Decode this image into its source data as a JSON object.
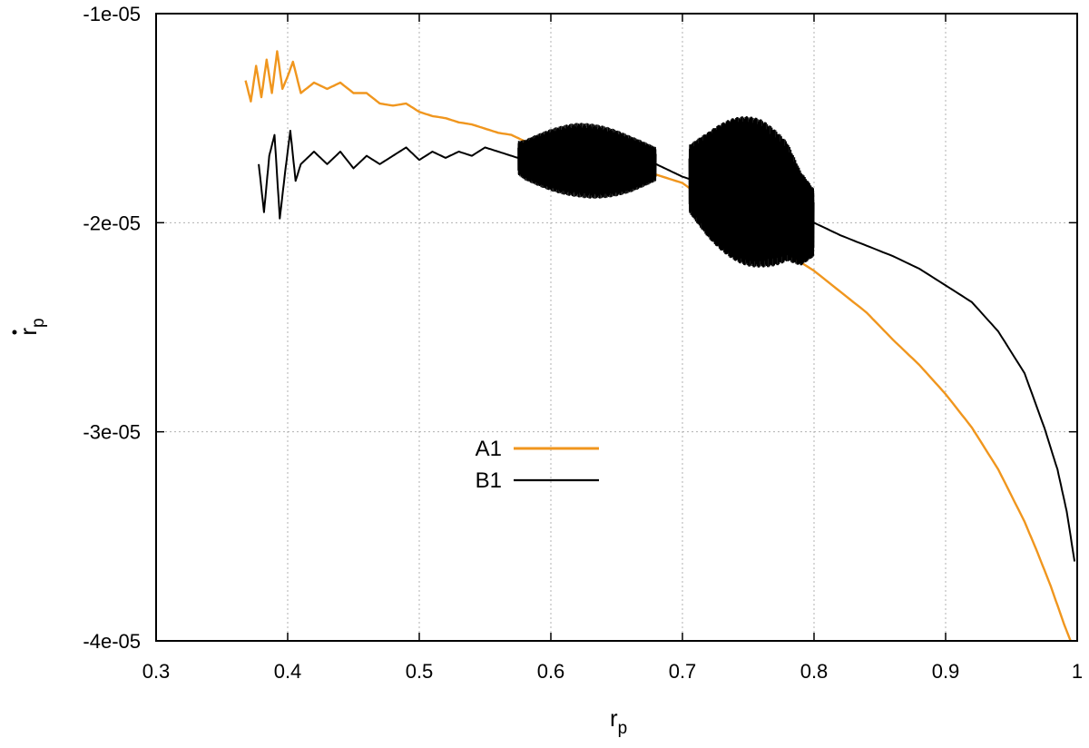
{
  "chart_data": {
    "type": "line",
    "title": "",
    "xlabel": "r",
    "xlabel_sub": "p",
    "ylabel": "r",
    "ylabel_sub": "p",
    "ylabel_dot": true,
    "xlim": [
      0.3,
      1.0
    ],
    "ylim": [
      -4e-05,
      -1e-05
    ],
    "x_ticks": [
      0.3,
      0.4,
      0.5,
      0.6,
      0.7,
      0.8,
      0.9,
      1.0
    ],
    "x_tick_labels": [
      "0.3",
      "0.4",
      "0.5",
      "0.6",
      "0.7",
      "0.8",
      "0.9",
      "1"
    ],
    "y_ticks": [
      -1e-05,
      -2e-05,
      -3e-05,
      -4e-05
    ],
    "y_tick_labels": [
      "-1e-05",
      "-2e-05",
      "-3e-05",
      "-4e-05"
    ],
    "grid": true,
    "legend_position": "center-left",
    "series": [
      {
        "name": "A1",
        "color": "#f0961e",
        "x": [
          0.368,
          0.372,
          0.376,
          0.38,
          0.384,
          0.388,
          0.392,
          0.396,
          0.4,
          0.404,
          0.41,
          0.42,
          0.43,
          0.44,
          0.45,
          0.46,
          0.47,
          0.48,
          0.49,
          0.5,
          0.51,
          0.52,
          0.53,
          0.54,
          0.55,
          0.56,
          0.57,
          0.58,
          0.59,
          0.6,
          0.62,
          0.64,
          0.66,
          0.68,
          0.7,
          0.72,
          0.74,
          0.76,
          0.78,
          0.8,
          0.82,
          0.84,
          0.86,
          0.88,
          0.9,
          0.92,
          0.94,
          0.96,
          0.97,
          0.98,
          0.99,
          0.995
        ],
        "y": [
          -1.32e-05,
          -1.42e-05,
          -1.25e-05,
          -1.4e-05,
          -1.22e-05,
          -1.38e-05,
          -1.18e-05,
          -1.36e-05,
          -1.3e-05,
          -1.23e-05,
          -1.38e-05,
          -1.33e-05,
          -1.36e-05,
          -1.33e-05,
          -1.38e-05,
          -1.38e-05,
          -1.43e-05,
          -1.44e-05,
          -1.43e-05,
          -1.47e-05,
          -1.49e-05,
          -1.5e-05,
          -1.52e-05,
          -1.53e-05,
          -1.55e-05,
          -1.57e-05,
          -1.58e-05,
          -1.61e-05,
          -1.62e-05,
          -1.64e-05,
          -1.68e-05,
          -1.7e-05,
          -1.73e-05,
          -1.77e-05,
          -1.81e-05,
          -1.9e-05,
          -1.99e-05,
          -2.07e-05,
          -2.15e-05,
          -2.23e-05,
          -2.33e-05,
          -2.43e-05,
          -2.56e-05,
          -2.68e-05,
          -2.82e-05,
          -2.98e-05,
          -3.18e-05,
          -3.43e-05,
          -3.58e-05,
          -3.74e-05,
          -3.92e-05,
          -4e-05
        ]
      },
      {
        "name": "B1",
        "color": "#000000",
        "x": [
          0.378,
          0.382,
          0.386,
          0.39,
          0.394,
          0.398,
          0.402,
          0.406,
          0.41,
          0.42,
          0.43,
          0.44,
          0.45,
          0.46,
          0.47,
          0.48,
          0.49,
          0.5,
          0.51,
          0.52,
          0.53,
          0.54,
          0.55,
          0.56,
          0.57,
          0.58,
          0.6,
          0.62,
          0.64,
          0.66,
          0.68,
          0.69,
          0.7,
          0.71,
          0.72,
          0.74,
          0.76,
          0.78,
          0.79,
          0.8,
          0.82,
          0.84,
          0.86,
          0.88,
          0.9,
          0.92,
          0.94,
          0.96,
          0.975,
          0.985,
          0.992,
          0.998
        ],
        "y": [
          -1.72e-05,
          -1.95e-05,
          -1.68e-05,
          -1.58e-05,
          -1.98e-05,
          -1.76e-05,
          -1.56e-05,
          -1.8e-05,
          -1.72e-05,
          -1.66e-05,
          -1.72e-05,
          -1.66e-05,
          -1.74e-05,
          -1.68e-05,
          -1.72e-05,
          -1.68e-05,
          -1.64e-05,
          -1.7e-05,
          -1.66e-05,
          -1.69e-05,
          -1.66e-05,
          -1.68e-05,
          -1.64e-05,
          -1.66e-05,
          -1.68e-05,
          -1.7e-05,
          -1.7e-05,
          -1.7e-05,
          -1.71e-05,
          -1.72e-05,
          -1.72e-05,
          -1.75e-05,
          -1.78e-05,
          -1.8e-05,
          -1.82e-05,
          -1.84e-05,
          -1.86e-05,
          -1.9e-05,
          -1.98e-05,
          -2e-05,
          -2.06e-05,
          -2.11e-05,
          -2.16e-05,
          -2.22e-05,
          -2.3e-05,
          -2.38e-05,
          -2.52e-05,
          -2.72e-05,
          -2.98e-05,
          -3.18e-05,
          -3.38e-05,
          -3.62e-05
        ]
      }
    ],
    "noise_bands": [
      {
        "series": "B1",
        "x_range": [
          0.575,
          0.68
        ],
        "amplitude": 1.8e-06
      },
      {
        "series": "B1",
        "x_range": [
          0.705,
          0.8
        ],
        "amplitude": 3.6e-06
      }
    ]
  }
}
